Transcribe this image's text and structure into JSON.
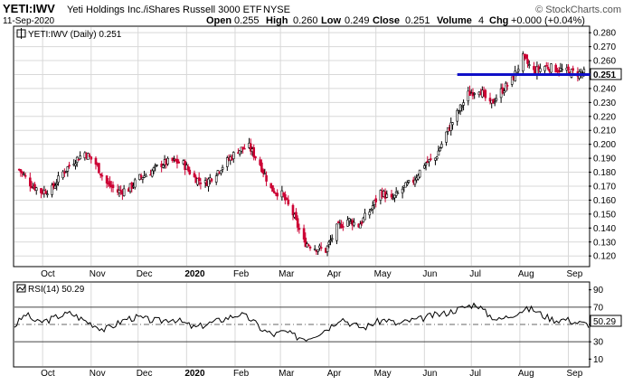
{
  "header": {
    "symbol": "YETI:IWV",
    "name": "Yeti Holdings Inc./iShares Russell 3000 ETF",
    "exchange": "NYSE",
    "date": "11-Sep-2020",
    "open_label": "Open",
    "open": "0.255",
    "high_label": "High",
    "high": "0.260",
    "low_label": "Low",
    "low": "0.249",
    "close_label": "Close",
    "close": "0.251",
    "volume_label": "Volume",
    "volume": "4",
    "chg_label": "Chg",
    "chg": "+0.000 (+0.04%)",
    "watermark": "© StockCharts.com"
  },
  "colors": {
    "up": "#000000",
    "down": "#cc0033",
    "trendline": "#1010c8",
    "rsi_fill": "#8a9a8a",
    "grid": "#d8d8d8"
  },
  "chart_data": [
    {
      "type": "candlestick",
      "legend": "YETI:IWV (Daily) 0.251",
      "y_ticks": [
        "0.280",
        "0.270",
        "0.260",
        "0.250",
        "0.240",
        "0.230",
        "0.220",
        "0.210",
        "0.200",
        "0.190",
        "0.180",
        "0.170",
        "0.160",
        "0.150",
        "0.140",
        "0.130",
        "0.120"
      ],
      "ylim": [
        0.113,
        0.284
      ],
      "x_ticks": [
        "Oct",
        "Nov",
        "Dec",
        "2020",
        "Feb",
        "Mar",
        "Apr",
        "May",
        "Jun",
        "Jul",
        "Aug",
        "Sep"
      ],
      "last_value_label": "0.251",
      "trendline": {
        "value": 0.25,
        "from": "2020-06-22",
        "to": "2020-09-11"
      },
      "series": [
        {
          "date": "2019-09-16",
          "close": 0.182
        },
        {
          "date": "2019-09-23",
          "close": 0.172
        },
        {
          "date": "2019-09-30",
          "close": 0.166
        },
        {
          "date": "2019-10-07",
          "close": 0.168
        },
        {
          "date": "2019-10-14",
          "close": 0.18
        },
        {
          "date": "2019-10-21",
          "close": 0.188
        },
        {
          "date": "2019-10-28",
          "close": 0.194
        },
        {
          "date": "2019-11-04",
          "close": 0.186
        },
        {
          "date": "2019-11-11",
          "close": 0.172
        },
        {
          "date": "2019-11-18",
          "close": 0.166
        },
        {
          "date": "2019-11-25",
          "close": 0.168
        },
        {
          "date": "2019-12-02",
          "close": 0.176
        },
        {
          "date": "2019-12-09",
          "close": 0.18
        },
        {
          "date": "2019-12-16",
          "close": 0.186
        },
        {
          "date": "2019-12-23",
          "close": 0.188
        },
        {
          "date": "2019-12-30",
          "close": 0.186
        },
        {
          "date": "2020-01-06",
          "close": 0.176
        },
        {
          "date": "2020-01-13",
          "close": 0.172
        },
        {
          "date": "2020-01-20",
          "close": 0.18
        },
        {
          "date": "2020-01-27",
          "close": 0.188
        },
        {
          "date": "2020-02-03",
          "close": 0.196
        },
        {
          "date": "2020-02-10",
          "close": 0.198
        },
        {
          "date": "2020-02-17",
          "close": 0.186
        },
        {
          "date": "2020-02-24",
          "close": 0.168
        },
        {
          "date": "2020-03-02",
          "close": 0.164
        },
        {
          "date": "2020-03-09",
          "close": 0.15
        },
        {
          "date": "2020-03-16",
          "close": 0.13
        },
        {
          "date": "2020-03-23",
          "close": 0.126
        },
        {
          "date": "2020-03-30",
          "close": 0.124
        },
        {
          "date": "2020-04-06",
          "close": 0.14
        },
        {
          "date": "2020-04-13",
          "close": 0.146
        },
        {
          "date": "2020-04-20",
          "close": 0.142
        },
        {
          "date": "2020-04-27",
          "close": 0.152
        },
        {
          "date": "2020-05-04",
          "close": 0.166
        },
        {
          "date": "2020-05-11",
          "close": 0.16
        },
        {
          "date": "2020-05-18",
          "close": 0.168
        },
        {
          "date": "2020-05-25",
          "close": 0.174
        },
        {
          "date": "2020-06-01",
          "close": 0.186
        },
        {
          "date": "2020-06-08",
          "close": 0.19
        },
        {
          "date": "2020-06-15",
          "close": 0.208
        },
        {
          "date": "2020-06-22",
          "close": 0.222
        },
        {
          "date": "2020-06-29",
          "close": 0.236
        },
        {
          "date": "2020-07-06",
          "close": 0.24
        },
        {
          "date": "2020-07-13",
          "close": 0.228
        },
        {
          "date": "2020-07-20",
          "close": 0.238
        },
        {
          "date": "2020-07-27",
          "close": 0.246
        },
        {
          "date": "2020-08-03",
          "close": 0.262
        },
        {
          "date": "2020-08-10",
          "close": 0.252
        },
        {
          "date": "2020-08-17",
          "close": 0.256
        },
        {
          "date": "2020-08-24",
          "close": 0.254
        },
        {
          "date": "2020-08-31",
          "close": 0.252
        },
        {
          "date": "2020-09-07",
          "close": 0.251
        }
      ]
    },
    {
      "type": "line",
      "legend": "RSI(14) 50.29",
      "y_ticks": [
        "90",
        "70",
        "50",
        "30",
        "10"
      ],
      "ylim": [
        2,
        98
      ],
      "reference_lines": [
        70,
        30
      ],
      "last_value_label": "50.29",
      "x_ticks": [
        "Oct",
        "Nov",
        "Dec",
        "2020",
        "Feb",
        "Mar",
        "Apr",
        "May",
        "Jun",
        "Jul",
        "Aug",
        "Sep"
      ],
      "values": [
        48,
        62,
        52,
        55,
        60,
        63,
        56,
        50,
        44,
        50,
        57,
        58,
        55,
        54,
        57,
        52,
        46,
        50,
        54,
        58,
        62,
        56,
        44,
        38,
        42,
        36,
        34,
        40,
        47,
        58,
        50,
        46,
        52,
        56,
        50,
        54,
        56,
        60,
        62,
        66,
        70,
        74,
        62,
        55,
        60,
        66,
        68,
        60,
        55,
        56,
        52,
        50
      ]
    }
  ]
}
